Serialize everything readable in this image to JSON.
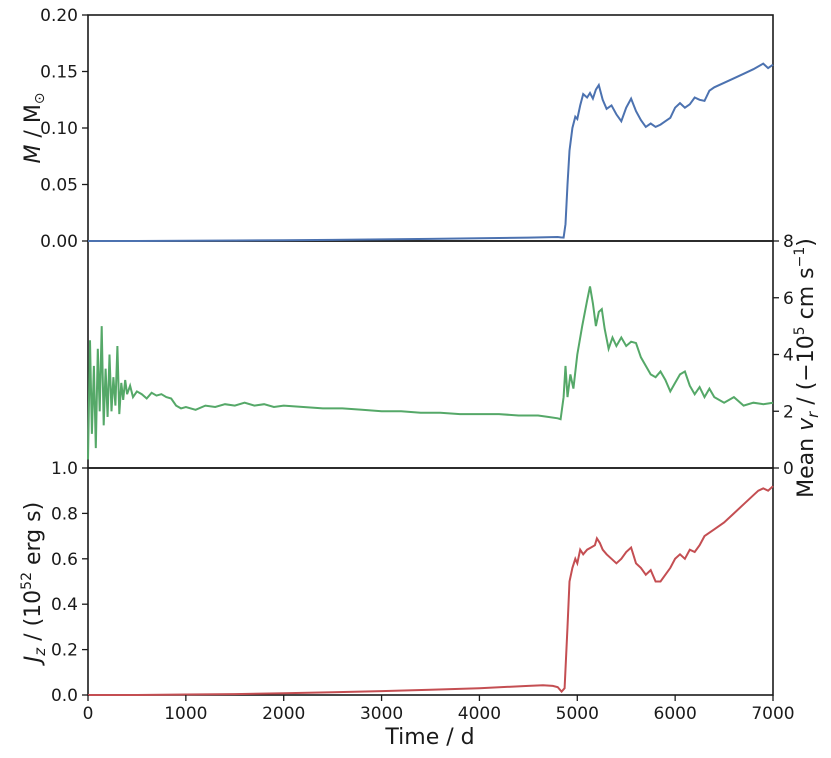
{
  "chart_data": [
    {
      "type": "line",
      "panel": "top",
      "ylabel": "M / M⊙",
      "ylabel_parts": {
        "var": "M",
        "unit": " / M",
        "sun": "⊙"
      },
      "xlim": [
        0,
        7000
      ],
      "ylim": [
        0,
        0.2
      ],
      "yticks": [
        "0.00",
        "0.05",
        "0.10",
        "0.15",
        "0.20"
      ],
      "color": "#4c72b0",
      "series": [
        {
          "x": [
            0,
            500,
            1000,
            1500,
            2000,
            2500,
            3000,
            3500,
            4000,
            4500,
            4800,
            4830,
            4860,
            4880,
            4900,
            4920,
            4950,
            4980,
            5000,
            5030,
            5060,
            5100,
            5130,
            5160,
            5190,
            5220,
            5260,
            5300,
            5350,
            5400,
            5450,
            5500,
            5550,
            5600,
            5650,
            5700,
            5750,
            5800,
            5850,
            5900,
            5950,
            6000,
            6050,
            6100,
            6150,
            6200,
            6250,
            6300,
            6350,
            6400,
            6500,
            6600,
            6700,
            6800,
            6900,
            6950,
            7000
          ],
          "y": [
            0,
            0,
            0.0002,
            0.0004,
            0.0007,
            0.001,
            0.0014,
            0.0019,
            0.0024,
            0.003,
            0.0035,
            0.0032,
            0.003,
            0.015,
            0.05,
            0.08,
            0.1,
            0.11,
            0.108,
            0.12,
            0.13,
            0.127,
            0.131,
            0.126,
            0.134,
            0.138,
            0.125,
            0.117,
            0.12,
            0.112,
            0.106,
            0.118,
            0.126,
            0.115,
            0.107,
            0.101,
            0.104,
            0.101,
            0.103,
            0.106,
            0.109,
            0.118,
            0.122,
            0.118,
            0.121,
            0.127,
            0.125,
            0.124,
            0.133,
            0.136,
            0.14,
            0.144,
            0.148,
            0.152,
            0.157,
            0.153,
            0.156
          ]
        }
      ]
    },
    {
      "type": "line",
      "panel": "middle",
      "ylabel": "Mean v_r / (−10^5 cm s^−1)",
      "ylabel_parts": {
        "pre": "Mean ",
        "var": "v",
        "sub": "r",
        "mid": " / (−10",
        "exp": "5",
        "mid2": " cm s",
        "exp2": "−1",
        "post": ")"
      },
      "xlim": [
        0,
        7000
      ],
      "ylim": [
        0,
        8
      ],
      "yticks": [
        "0",
        "2",
        "4",
        "6",
        "8"
      ],
      "y_axis_side": "right",
      "color": "#55a868",
      "series": [
        {
          "x": [
            0,
            20,
            40,
            60,
            80,
            100,
            120,
            140,
            160,
            180,
            200,
            220,
            240,
            260,
            280,
            300,
            320,
            340,
            360,
            380,
            400,
            430,
            460,
            500,
            550,
            600,
            650,
            700,
            750,
            800,
            850,
            900,
            950,
            1000,
            1100,
            1200,
            1300,
            1400,
            1500,
            1600,
            1700,
            1800,
            1900,
            2000,
            2200,
            2400,
            2600,
            2800,
            3000,
            3200,
            3400,
            3600,
            3800,
            4000,
            4200,
            4400,
            4600,
            4700,
            4800,
            4830,
            4860,
            4880,
            4900,
            4930,
            4960,
            5000,
            5050,
            5100,
            5130,
            5160,
            5190,
            5220,
            5250,
            5280,
            5320,
            5360,
            5400,
            5450,
            5500,
            5550,
            5600,
            5650,
            5700,
            5750,
            5800,
            5850,
            5900,
            5950,
            6000,
            6050,
            6100,
            6150,
            6200,
            6250,
            6300,
            6350,
            6400,
            6500,
            6600,
            6700,
            6800,
            6900,
            7000
          ],
          "y": [
            0.3,
            4.5,
            1.2,
            3.6,
            0.7,
            4.2,
            2.0,
            5.0,
            1.5,
            3.5,
            1.8,
            4.0,
            2.0,
            3.2,
            2.2,
            4.3,
            1.9,
            3.0,
            2.4,
            3.1,
            2.6,
            2.9,
            2.5,
            2.7,
            2.6,
            2.45,
            2.65,
            2.55,
            2.6,
            2.5,
            2.45,
            2.2,
            2.1,
            2.15,
            2.05,
            2.2,
            2.15,
            2.25,
            2.2,
            2.3,
            2.2,
            2.25,
            2.15,
            2.2,
            2.15,
            2.1,
            2.1,
            2.05,
            2.0,
            2.0,
            1.95,
            1.95,
            1.9,
            1.9,
            1.9,
            1.85,
            1.85,
            1.8,
            1.75,
            1.72,
            2.5,
            3.6,
            2.5,
            3.3,
            2.8,
            4.0,
            5.0,
            5.9,
            6.4,
            5.8,
            5.0,
            5.5,
            5.6,
            4.9,
            4.2,
            4.6,
            4.3,
            4.6,
            4.3,
            4.45,
            4.4,
            3.9,
            3.6,
            3.3,
            3.2,
            3.4,
            3.1,
            2.7,
            3.0,
            3.3,
            3.4,
            2.9,
            2.6,
            2.85,
            2.5,
            2.8,
            2.5,
            2.3,
            2.5,
            2.2,
            2.3,
            2.25,
            2.3
          ]
        }
      ]
    },
    {
      "type": "line",
      "panel": "bottom",
      "ylabel": "J_z / (10^52 erg s)",
      "ylabel_parts": {
        "var": "J",
        "sub": "z",
        "mid": " / (10",
        "exp": "52",
        "post": " erg s)"
      },
      "xlabel": "Time / d",
      "xlim": [
        0,
        7000
      ],
      "ylim": [
        0,
        1.0
      ],
      "xticks": [
        "0",
        "1000",
        "2000",
        "3000",
        "4000",
        "5000",
        "6000",
        "7000"
      ],
      "yticks": [
        "0.0",
        "0.2",
        "0.4",
        "0.6",
        "0.8",
        "1.0"
      ],
      "color": "#c44e52",
      "series": [
        {
          "x": [
            0,
            500,
            1000,
            1500,
            2000,
            2500,
            3000,
            3500,
            4000,
            4500,
            4650,
            4750,
            4800,
            4840,
            4870,
            4900,
            4920,
            4950,
            4980,
            5000,
            5030,
            5060,
            5100,
            5140,
            5180,
            5200,
            5230,
            5260,
            5300,
            5350,
            5400,
            5450,
            5500,
            5550,
            5600,
            5650,
            5700,
            5750,
            5800,
            5850,
            5900,
            5950,
            6000,
            6050,
            6100,
            6150,
            6200,
            6250,
            6300,
            6400,
            6500,
            6600,
            6700,
            6800,
            6850,
            6900,
            6950,
            7000
          ],
          "y": [
            0,
            0,
            0.002,
            0.004,
            0.008,
            0.012,
            0.017,
            0.023,
            0.03,
            0.04,
            0.043,
            0.04,
            0.035,
            0.015,
            0.03,
            0.3,
            0.5,
            0.56,
            0.6,
            0.58,
            0.64,
            0.62,
            0.64,
            0.65,
            0.66,
            0.69,
            0.67,
            0.64,
            0.62,
            0.6,
            0.58,
            0.6,
            0.63,
            0.65,
            0.58,
            0.56,
            0.53,
            0.55,
            0.5,
            0.5,
            0.53,
            0.56,
            0.6,
            0.62,
            0.6,
            0.64,
            0.63,
            0.66,
            0.7,
            0.73,
            0.76,
            0.8,
            0.84,
            0.88,
            0.9,
            0.91,
            0.9,
            0.92
          ]
        }
      ]
    }
  ]
}
